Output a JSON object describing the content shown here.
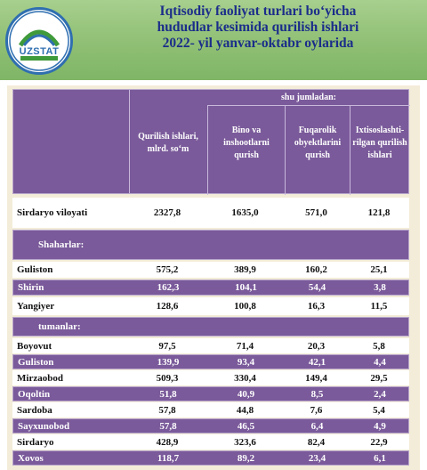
{
  "header": {
    "logo_text": "UZSTAT",
    "title_lines": [
      "Iqtisodiy faoliyat turlari bo‘yicha",
      "hududlar kesimida qurilish ishlari",
      "2022- yil yanvar-oktabr oylarida"
    ]
  },
  "table": {
    "group_header": "shu jumladan:",
    "columns": [
      "Qurilish ishlari, mlrd. so‘m",
      "Bino va inshootlarni qurish",
      "Fuqarolik obyektlarini qurish",
      "Ixtisoslashti-rilgan qurilish ishlari"
    ],
    "total": {
      "name": "Sirdaryo viloyati",
      "values": [
        "2327,8",
        "1635,0",
        "571,0",
        "121,8"
      ]
    },
    "section_cities": "Shaharlar:",
    "cities": [
      {
        "name": "Guliston",
        "values": [
          "575,2",
          "389,9",
          "160,2",
          "25,1"
        ]
      },
      {
        "name": "Shirin",
        "values": [
          "162,3",
          "104,1",
          "54,4",
          "3,8"
        ]
      },
      {
        "name": "Yangiyer",
        "values": [
          "128,6",
          "100,8",
          "16,3",
          "11,5"
        ]
      }
    ],
    "section_districts": "tumanlar:",
    "districts": [
      {
        "name": "Boyovut",
        "values": [
          "97,5",
          "71,4",
          "20,3",
          "5,8"
        ]
      },
      {
        "name": "Guliston",
        "values": [
          "139,9",
          "93,4",
          "42,1",
          "4,4"
        ]
      },
      {
        "name": "Mirzaobod",
        "values": [
          "509,3",
          "330,4",
          "149,4",
          "29,5"
        ]
      },
      {
        "name": "Oqoltin",
        "values": [
          "51,8",
          "40,9",
          "8,5",
          "2,4"
        ]
      },
      {
        "name": "Sardoba",
        "values": [
          "57,8",
          "44,8",
          "7,6",
          "5,4"
        ]
      },
      {
        "name": "Sayxunobod",
        "values": [
          "57,8",
          "46,5",
          "6,4",
          "4,9"
        ]
      },
      {
        "name": "Sirdaryo",
        "values": [
          "428,9",
          "323,6",
          "82,4",
          "22,9"
        ]
      },
      {
        "name": "Xovos",
        "values": [
          "118,7",
          "89,2",
          "23,4",
          "6,1"
        ]
      }
    ]
  }
}
